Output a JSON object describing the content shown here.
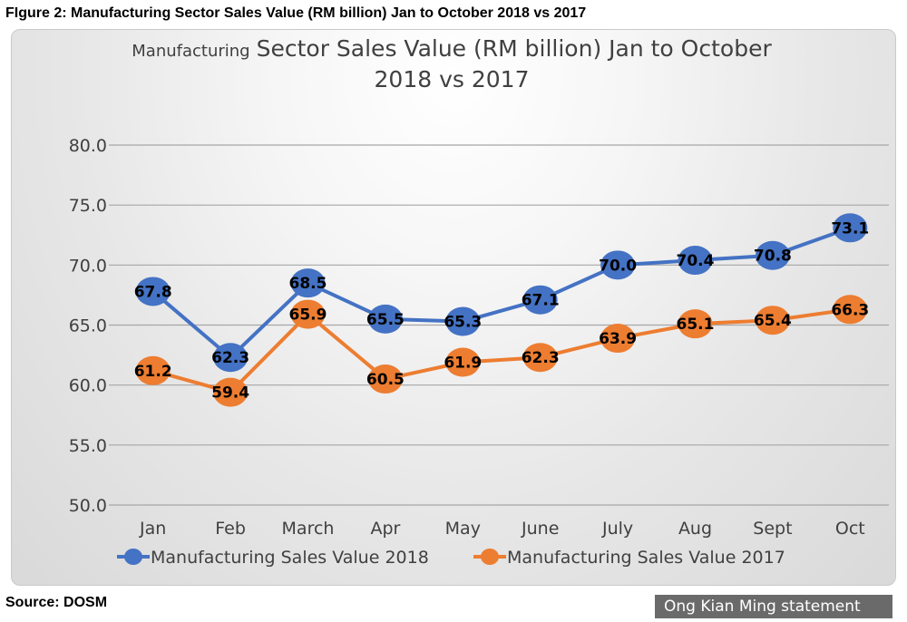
{
  "figure_caption": "FIgure 2: Manufacturing Sector Sales Value (RM billion) Jan to October 2018 vs 2017",
  "source": "Source: DOSM",
  "watermark": "Ong Kian Ming statement",
  "colors": {
    "series_2018": "#4472C4",
    "series_2017": "#ED7D31",
    "gridline": "#a6a6a6",
    "text": "#404040"
  },
  "chart_data": {
    "type": "line",
    "title_line1_small": "Manufacturing",
    "title_line1_large": "Sector Sales Value (RM billion) Jan to October",
    "title_line2": "2018 vs 2017",
    "xlabel": "",
    "ylabel": "",
    "ylim": [
      50,
      80
    ],
    "yticks": [
      "80.0",
      "75.0",
      "70.0",
      "65.0",
      "60.0",
      "55.0",
      "50.0"
    ],
    "categories": [
      "Jan",
      "Feb",
      "March",
      "Apr",
      "May",
      "June",
      "July",
      "Aug",
      "Sept",
      "Oct"
    ],
    "grid": true,
    "legend_position": "bottom",
    "series": [
      {
        "name": "Manufacturing Sales Value 2018",
        "color": "#4472C4",
        "values": [
          67.8,
          62.3,
          68.5,
          65.5,
          65.3,
          67.1,
          70.0,
          70.4,
          70.8,
          73.1
        ]
      },
      {
        "name": "Manufacturing Sales Value 2017",
        "color": "#ED7D31",
        "values": [
          61.2,
          59.4,
          65.9,
          60.5,
          61.9,
          62.3,
          63.9,
          65.1,
          65.4,
          66.3
        ]
      }
    ]
  }
}
